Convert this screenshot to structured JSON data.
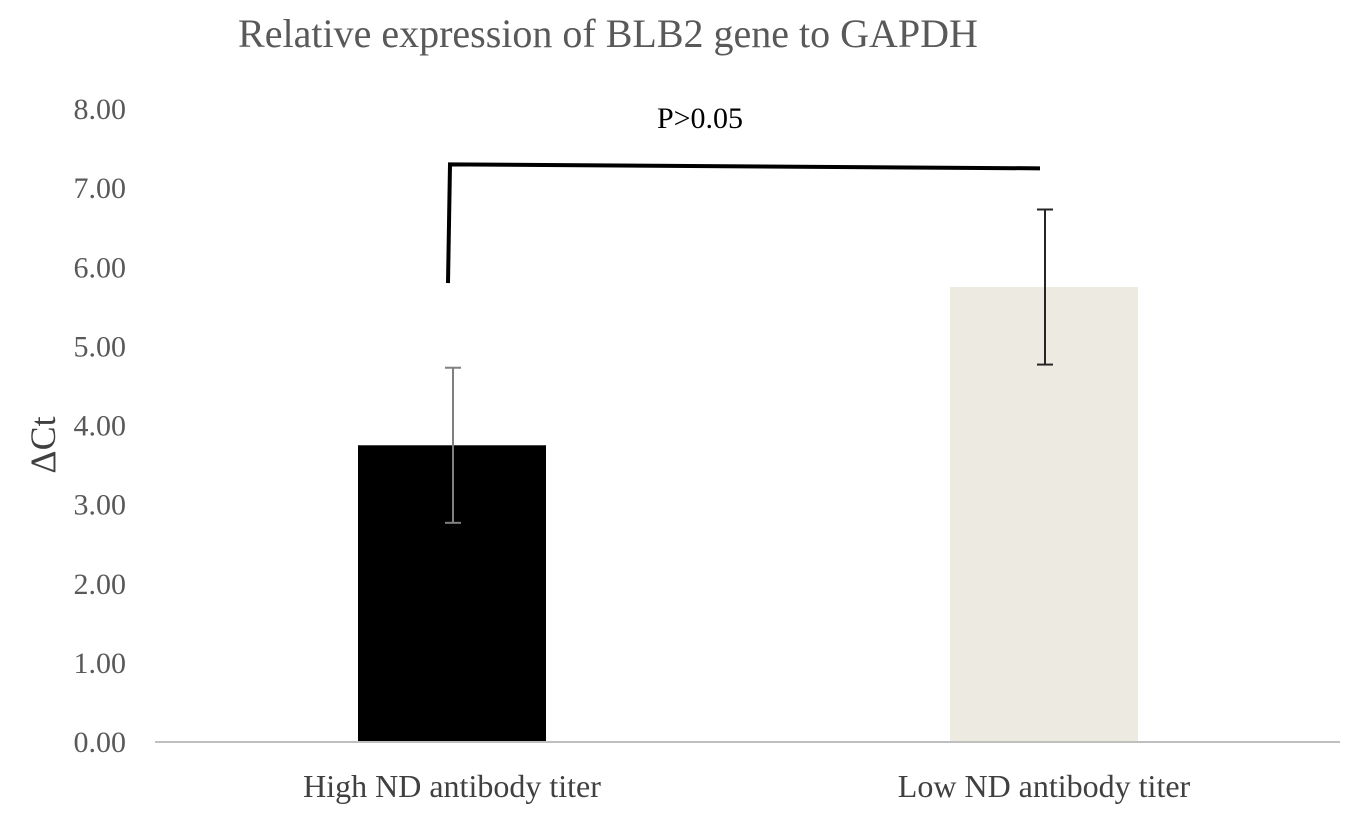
{
  "chart_data": {
    "type": "bar",
    "title": "Relative expression of BLB2 gene to GAPDH",
    "ylabel": "ΔCt",
    "xlabel": "",
    "categories": [
      "High ND antibody titer",
      "Low ND antibody titer"
    ],
    "values": [
      3.75,
      5.75
    ],
    "error_bars": [
      0.98,
      0.98
    ],
    "ylim": [
      0,
      8
    ],
    "yticks": [
      "0.00",
      "1.00",
      "2.00",
      "3.00",
      "4.00",
      "5.00",
      "6.00",
      "7.00",
      "8.00"
    ],
    "grid": false,
    "legend": "none",
    "bar_colors": [
      "#000000",
      "#edebe1"
    ],
    "annotation": {
      "text": "P>0.05",
      "bracket_y": 7.3,
      "left_bottom": 5.8,
      "right_bottom": 7.25
    }
  }
}
